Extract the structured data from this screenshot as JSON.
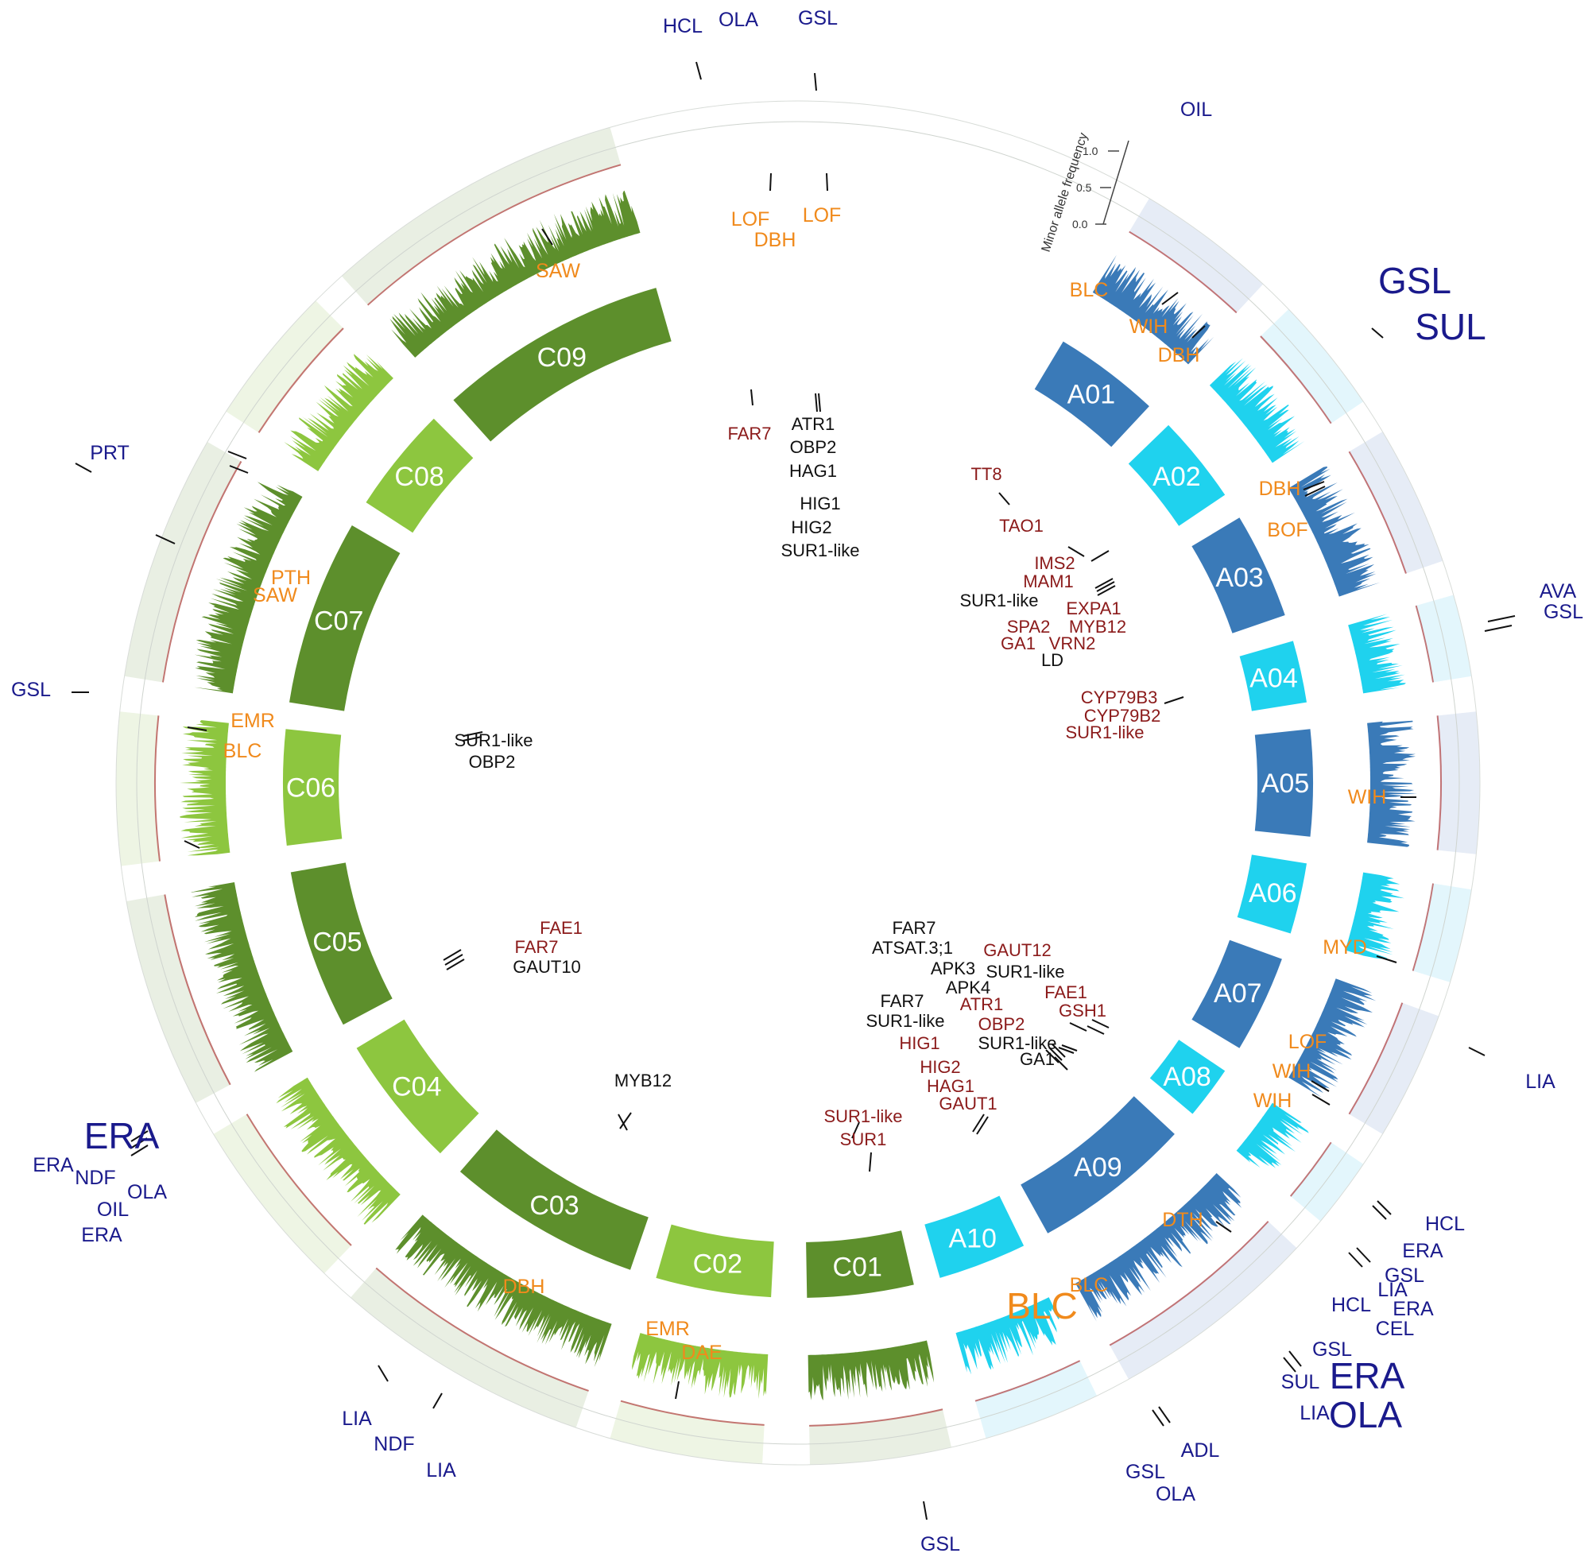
{
  "colors": {
    "A_dark": "#3a7ab8",
    "A_light": "#1fd2ee",
    "C_dark": "#5d8f2c",
    "C_light": "#8dc63f",
    "gene_black": "#111111",
    "gene_red": "#8b1a1a",
    "trait_orange": "#f08a1c",
    "trait_blue": "#1a1a8c",
    "maf_line": "#b04040"
  },
  "scale": {
    "title": "Minor allele frequency",
    "ticks": [
      "0.0",
      "0.5",
      "1.0"
    ]
  },
  "chromosomes": [
    {
      "id": "A01",
      "label": "A01",
      "group": "A_dark"
    },
    {
      "id": "A02",
      "label": "A02",
      "group": "A_light"
    },
    {
      "id": "A03",
      "label": "A03",
      "group": "A_dark"
    },
    {
      "id": "A04",
      "label": "A04",
      "group": "A_light"
    },
    {
      "id": "A05",
      "label": "A05",
      "group": "A_dark"
    },
    {
      "id": "A06",
      "label": "A06",
      "group": "A_light"
    },
    {
      "id": "A07",
      "label": "A07",
      "group": "A_dark"
    },
    {
      "id": "A08",
      "label": "A08",
      "group": "A_light"
    },
    {
      "id": "A09",
      "label": "A09",
      "group": "A_dark"
    },
    {
      "id": "A10",
      "label": "A10",
      "group": "A_light"
    },
    {
      "id": "C01",
      "label": "C01",
      "group": "C_dark"
    },
    {
      "id": "C02",
      "label": "C02",
      "group": "C_light"
    },
    {
      "id": "C03",
      "label": "C03",
      "group": "C_dark"
    },
    {
      "id": "C04",
      "label": "C04",
      "group": "C_light"
    },
    {
      "id": "C05",
      "label": "C05",
      "group": "C_dark"
    },
    {
      "id": "C06",
      "label": "C06",
      "group": "C_light"
    },
    {
      "id": "C07",
      "label": "C07",
      "group": "C_dark"
    },
    {
      "id": "C08",
      "label": "C08",
      "group": "C_light"
    },
    {
      "id": "C09",
      "label": "C09",
      "group": "C_dark"
    }
  ],
  "genes": [
    {
      "text": "ATR1",
      "color": "black"
    },
    {
      "text": "OBP2",
      "color": "black"
    },
    {
      "text": "HAG1",
      "color": "black"
    },
    {
      "text": "HIG1",
      "color": "black"
    },
    {
      "text": "HIG2",
      "color": "black"
    },
    {
      "text": "SUR1-like",
      "color": "black"
    },
    {
      "text": "FAR7",
      "color": "red"
    },
    {
      "text": "TT8",
      "color": "red"
    },
    {
      "text": "TAO1",
      "color": "red"
    },
    {
      "text": "IMS2",
      "color": "red"
    },
    {
      "text": "MAM1",
      "color": "red"
    },
    {
      "text": "SUR1-like",
      "color": "black"
    },
    {
      "text": "EXPA1",
      "color": "red"
    },
    {
      "text": "SPA2",
      "color": "red"
    },
    {
      "text": "MYB12",
      "color": "red"
    },
    {
      "text": "GA1",
      "color": "red"
    },
    {
      "text": "VRN2",
      "color": "red"
    },
    {
      "text": "LD",
      "color": "black"
    },
    {
      "text": "CYP79B3",
      "color": "red"
    },
    {
      "text": "CYP79B2",
      "color": "red"
    },
    {
      "text": "SUR1-like",
      "color": "red"
    },
    {
      "text": "SUR1-like",
      "color": "black"
    },
    {
      "text": "OBP2",
      "color": "black"
    },
    {
      "text": "FAE1",
      "color": "red"
    },
    {
      "text": "FAR7",
      "color": "red"
    },
    {
      "text": "GAUT10",
      "color": "black"
    },
    {
      "text": "MYB12",
      "color": "black"
    },
    {
      "text": "FAR7",
      "color": "black"
    },
    {
      "text": "ATSAT.3;1",
      "color": "black"
    },
    {
      "text": "GAUT12",
      "color": "red"
    },
    {
      "text": "APK3",
      "color": "black"
    },
    {
      "text": "SUR1-like",
      "color": "black"
    },
    {
      "text": "APK4",
      "color": "black"
    },
    {
      "text": "FAE1",
      "color": "red"
    },
    {
      "text": "FAR7",
      "color": "black"
    },
    {
      "text": "ATR1",
      "color": "red"
    },
    {
      "text": "GSH1",
      "color": "red"
    },
    {
      "text": "SUR1-like",
      "color": "black"
    },
    {
      "text": "OBP2",
      "color": "red"
    },
    {
      "text": "HIG1",
      "color": "red"
    },
    {
      "text": "SUR1-like",
      "color": "black"
    },
    {
      "text": "GA1",
      "color": "black"
    },
    {
      "text": "HIG2",
      "color": "red"
    },
    {
      "text": "HAG1",
      "color": "red"
    },
    {
      "text": "GAUT1",
      "color": "red"
    },
    {
      "text": "SUR1-like",
      "color": "red"
    },
    {
      "text": "SUR1",
      "color": "red"
    }
  ],
  "traits": [
    {
      "text": "HCL",
      "color": "blue",
      "size": "normal"
    },
    {
      "text": "OLA",
      "color": "blue",
      "size": "normal"
    },
    {
      "text": "GSL",
      "color": "blue",
      "size": "normal"
    },
    {
      "text": "OIL",
      "color": "blue",
      "size": "normal"
    },
    {
      "text": "LOF",
      "color": "orange",
      "size": "normal"
    },
    {
      "text": "LOF",
      "color": "orange",
      "size": "normal"
    },
    {
      "text": "DBH",
      "color": "orange",
      "size": "normal"
    },
    {
      "text": "SAW",
      "color": "orange",
      "size": "normal"
    },
    {
      "text": "BLC",
      "color": "orange",
      "size": "normal"
    },
    {
      "text": "WIH",
      "color": "orange",
      "size": "normal"
    },
    {
      "text": "DBH",
      "color": "orange",
      "size": "normal"
    },
    {
      "text": "GSL",
      "color": "blue",
      "size": "large"
    },
    {
      "text": "SUL",
      "color": "blue",
      "size": "large"
    },
    {
      "text": "PRT",
      "color": "blue",
      "size": "normal"
    },
    {
      "text": "DBH",
      "color": "orange",
      "size": "normal"
    },
    {
      "text": "BOF",
      "color": "orange",
      "size": "normal"
    },
    {
      "text": "PTH",
      "color": "orange",
      "size": "normal"
    },
    {
      "text": "SAW",
      "color": "orange",
      "size": "normal"
    },
    {
      "text": "AVA",
      "color": "blue",
      "size": "normal"
    },
    {
      "text": "GSL",
      "color": "blue",
      "size": "normal"
    },
    {
      "text": "GSL",
      "color": "blue",
      "size": "normal"
    },
    {
      "text": "EMR",
      "color": "orange",
      "size": "normal"
    },
    {
      "text": "BLC",
      "color": "orange",
      "size": "normal"
    },
    {
      "text": "WIH",
      "color": "orange",
      "size": "normal"
    },
    {
      "text": "MYD",
      "color": "orange",
      "size": "normal"
    },
    {
      "text": "LOF",
      "color": "orange",
      "size": "normal"
    },
    {
      "text": "WIH",
      "color": "orange",
      "size": "normal"
    },
    {
      "text": "WIH",
      "color": "orange",
      "size": "normal"
    },
    {
      "text": "LIA",
      "color": "blue",
      "size": "normal"
    },
    {
      "text": "ERA",
      "color": "blue",
      "size": "large"
    },
    {
      "text": "ERA",
      "color": "blue",
      "size": "normal"
    },
    {
      "text": "NDF",
      "color": "blue",
      "size": "normal"
    },
    {
      "text": "OLA",
      "color": "blue",
      "size": "normal"
    },
    {
      "text": "OIL",
      "color": "blue",
      "size": "normal"
    },
    {
      "text": "ERA",
      "color": "blue",
      "size": "normal"
    },
    {
      "text": "HCL",
      "color": "blue",
      "size": "normal"
    },
    {
      "text": "ERA",
      "color": "blue",
      "size": "normal"
    },
    {
      "text": "GSL",
      "color": "blue",
      "size": "normal"
    },
    {
      "text": "LIA",
      "color": "blue",
      "size": "normal"
    },
    {
      "text": "HCL",
      "color": "blue",
      "size": "normal"
    },
    {
      "text": "ERA",
      "color": "blue",
      "size": "normal"
    },
    {
      "text": "CEL",
      "color": "blue",
      "size": "normal"
    },
    {
      "text": "DTH",
      "color": "orange",
      "size": "normal"
    },
    {
      "text": "BLC",
      "color": "orange",
      "size": "normal"
    },
    {
      "text": "BLC",
      "color": "orange",
      "size": "large"
    },
    {
      "text": "DBH",
      "color": "orange",
      "size": "normal"
    },
    {
      "text": "EMR",
      "color": "orange",
      "size": "normal"
    },
    {
      "text": "DAE",
      "color": "orange",
      "size": "normal"
    },
    {
      "text": "GSL",
      "color": "blue",
      "size": "normal"
    },
    {
      "text": "SUL",
      "color": "blue",
      "size": "normal"
    },
    {
      "text": "ERA",
      "color": "blue",
      "size": "large"
    },
    {
      "text": "LIA",
      "color": "blue",
      "size": "normal"
    },
    {
      "text": "OLA",
      "color": "blue",
      "size": "large"
    },
    {
      "text": "GSL",
      "color": "blue",
      "size": "normal"
    },
    {
      "text": "ADL",
      "color": "blue",
      "size": "normal"
    },
    {
      "text": "OLA",
      "color": "blue",
      "size": "normal"
    },
    {
      "text": "LIA",
      "color": "blue",
      "size": "normal"
    },
    {
      "text": "NDF",
      "color": "blue",
      "size": "normal"
    },
    {
      "text": "LIA",
      "color": "blue",
      "size": "normal"
    },
    {
      "text": "GSL",
      "color": "blue",
      "size": "normal"
    }
  ]
}
